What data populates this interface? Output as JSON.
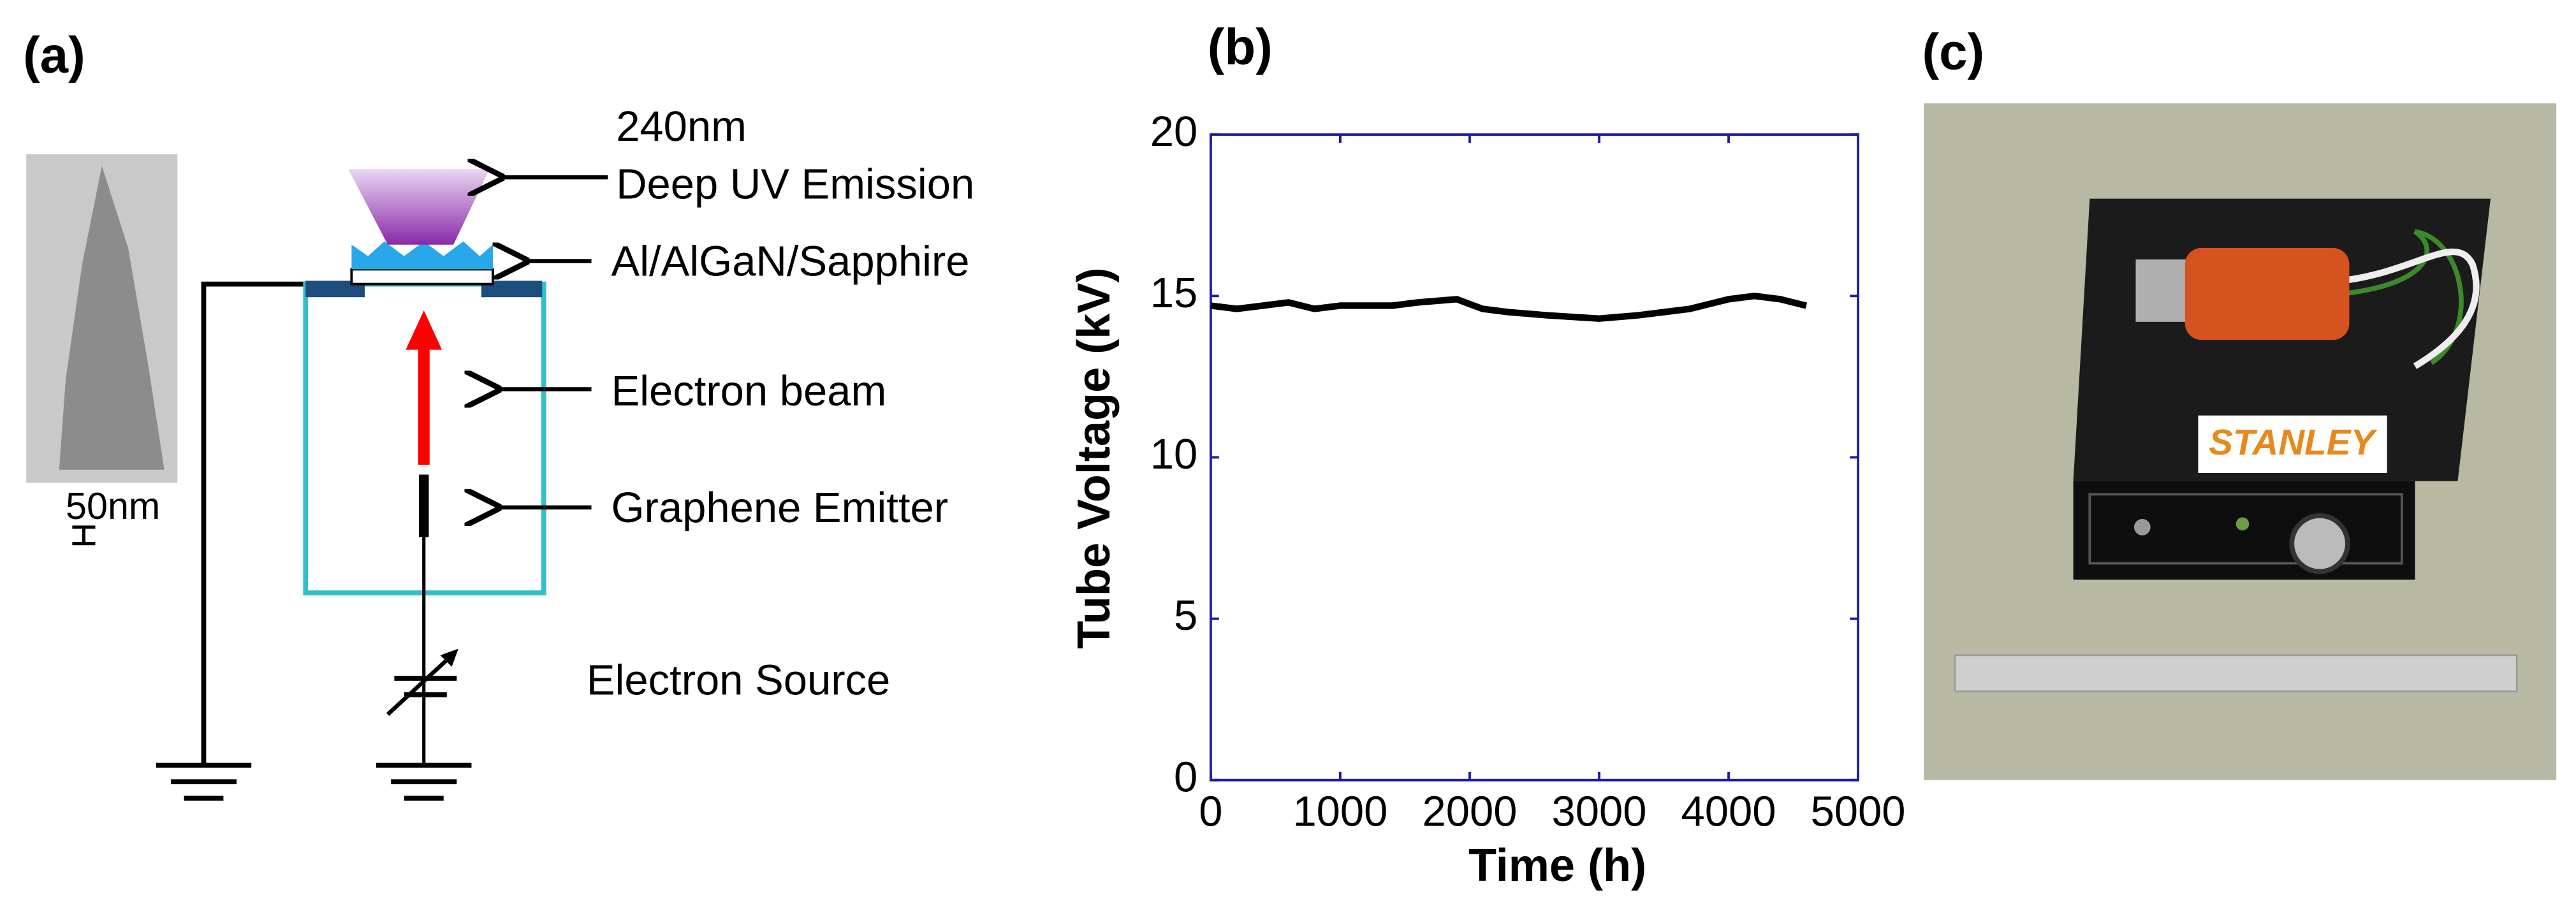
{
  "panels": [
    "(a)",
    "(b)",
    "(c)"
  ],
  "diagram": {
    "sem_scale": "50nm",
    "labels": [
      "240nm",
      "Deep UV Emission",
      "Al/AlGaN/Sapphire",
      "Electron beam",
      "Graphene Emitter",
      "Electron Source"
    ]
  },
  "photo": {
    "label": "STANLEY"
  },
  "chart_data": {
    "type": "line",
    "xlabel": "Time (h)",
    "ylabel": "Tube Voltage (kV)",
    "x": [
      0,
      200,
      400,
      600,
      800,
      1000,
      1200,
      1400,
      1600,
      1900,
      2100,
      2300,
      2600,
      3000,
      3300,
      3700,
      4000,
      4200,
      4400,
      4600
    ],
    "values": [
      14.7,
      14.6,
      14.7,
      14.8,
      14.6,
      14.7,
      14.7,
      14.7,
      14.8,
      14.9,
      14.6,
      14.5,
      14.4,
      14.3,
      14.4,
      14.6,
      14.9,
      15.0,
      14.9,
      14.7
    ],
    "color": "#000000",
    "axis_color": "#1c1ca8",
    "xlim": [
      0,
      5000
    ],
    "xticks": [
      0,
      1000,
      2000,
      3000,
      4000,
      5000
    ],
    "ylim": [
      0,
      20
    ],
    "yticks": [
      0,
      5,
      10,
      15,
      20
    ],
    "grid": false
  }
}
